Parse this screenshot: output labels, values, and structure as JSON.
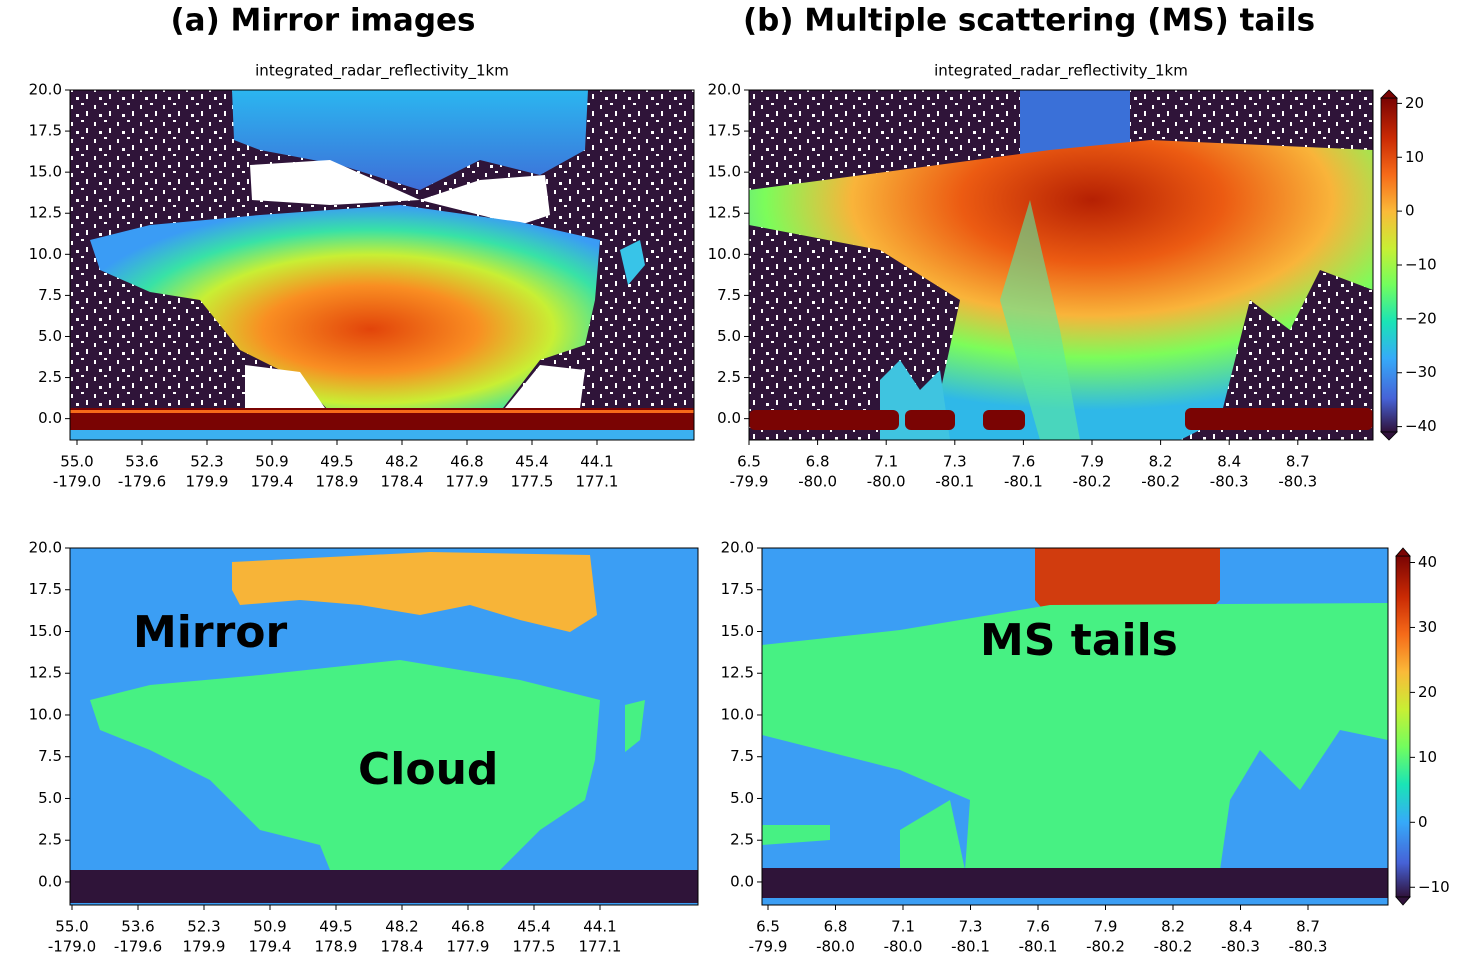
{
  "headings": [
    "(a) Mirror images",
    "(b) Multiple scattering (MS) tails"
  ],
  "chart_data": [
    {
      "type": "heatmap",
      "title": "integrated_radar_reflectivity_1km",
      "ylim": [
        -1.3,
        20
      ],
      "yticks": [
        {
          "value": 0,
          "label": "0.0"
        },
        {
          "value": 2.5,
          "label": "2.5"
        },
        {
          "value": 5,
          "label": "5.0"
        },
        {
          "value": 7.5,
          "label": "7.5"
        },
        {
          "value": 10,
          "label": "10.0"
        },
        {
          "value": 12.5,
          "label": "12.5"
        },
        {
          "value": 15,
          "label": "15.0"
        },
        {
          "value": 17.5,
          "label": "17.5"
        },
        {
          "value": 20,
          "label": "20.0"
        }
      ],
      "x_labels": [
        [
          "55.0",
          "-179.0"
        ],
        [
          "53.6",
          "-179.6"
        ],
        [
          "52.3",
          "179.9"
        ],
        [
          "50.9",
          "179.4"
        ],
        [
          "49.5",
          "178.9"
        ],
        [
          "48.2",
          "178.4"
        ],
        [
          "46.8",
          "177.9"
        ],
        [
          "45.4",
          "177.5"
        ],
        [
          "44.1",
          "177.1"
        ]
      ]
    },
    {
      "type": "heatmap",
      "title": "integrated_radar_reflectivity_1km",
      "ylim": [
        -1.3,
        20
      ],
      "yticks": [
        {
          "value": 0,
          "label": "0.0"
        },
        {
          "value": 2.5,
          "label": "2.5"
        },
        {
          "value": 5,
          "label": "5.0"
        },
        {
          "value": 7.5,
          "label": "7.5"
        },
        {
          "value": 10,
          "label": "10.0"
        },
        {
          "value": 12.5,
          "label": "12.5"
        },
        {
          "value": 15,
          "label": "15.0"
        },
        {
          "value": 17.5,
          "label": "17.5"
        },
        {
          "value": 20,
          "label": "20.0"
        }
      ],
      "x_labels": [
        [
          "6.5",
          "-79.9"
        ],
        [
          "6.8",
          "-80.0"
        ],
        [
          "7.1",
          "-80.0"
        ],
        [
          "7.3",
          "-80.1"
        ],
        [
          "7.6",
          "-80.1"
        ],
        [
          "7.9",
          "-80.2"
        ],
        [
          "8.2",
          "-80.2"
        ],
        [
          "8.4",
          "-80.3"
        ],
        [
          "8.7",
          "-80.3"
        ]
      ],
      "clim": [
        -41,
        21
      ],
      "cticks": [
        {
          "value": -40,
          "label": "−40"
        },
        {
          "value": -30,
          "label": "−30"
        },
        {
          "value": -20,
          "label": "−20"
        },
        {
          "value": -10,
          "label": "−10"
        },
        0,
        10,
        20
      ]
    },
    {
      "type": "heatmap",
      "ylim": [
        -1.38,
        20
      ],
      "yticks": [
        {
          "value": 0,
          "label": "0.0"
        },
        {
          "value": 2.5,
          "label": "2.5"
        },
        {
          "value": 5,
          "label": "5.0"
        },
        {
          "value": 7.5,
          "label": "7.5"
        },
        {
          "value": 10,
          "label": "10.0"
        },
        {
          "value": 12.5,
          "label": "12.5"
        },
        {
          "value": 15,
          "label": "15.0"
        },
        {
          "value": 17.5,
          "label": "17.5"
        },
        {
          "value": 20,
          "label": "20.0"
        }
      ],
      "x_labels": [
        [
          "55.0",
          "-179.0"
        ],
        [
          "53.6",
          "-179.6"
        ],
        [
          "52.3",
          "179.9"
        ],
        [
          "50.9",
          "179.4"
        ],
        [
          "49.5",
          "178.9"
        ],
        [
          "48.2",
          "178.4"
        ],
        [
          "46.8",
          "177.9"
        ],
        [
          "45.4",
          "177.5"
        ],
        [
          "44.1",
          "177.1"
        ]
      ],
      "annotations": [
        {
          "text": "Mirror",
          "color": "#f7b32f"
        },
        {
          "text": "Cloud",
          "color": "#2b5a1a"
        }
      ]
    },
    {
      "type": "heatmap",
      "ylim": [
        -1.38,
        20
      ],
      "yticks": [
        {
          "value": 0,
          "label": "0.0"
        },
        {
          "value": 2.5,
          "label": "2.5"
        },
        {
          "value": 5,
          "label": "5.0"
        },
        {
          "value": 7.5,
          "label": "7.5"
        },
        {
          "value": 10,
          "label": "10.0"
        },
        {
          "value": 12.5,
          "label": "12.5"
        },
        {
          "value": 15,
          "label": "15.0"
        },
        {
          "value": 17.5,
          "label": "17.5"
        },
        {
          "value": 20,
          "label": "20.0"
        }
      ],
      "x_labels": [
        [
          "6.5",
          "-79.9"
        ],
        [
          "6.8",
          "-80.0"
        ],
        [
          "7.1",
          "-80.0"
        ],
        [
          "7.3",
          "-80.1"
        ],
        [
          "7.6",
          "-80.1"
        ],
        [
          "7.9",
          "-80.2"
        ],
        [
          "8.2",
          "-80.2"
        ],
        [
          "8.4",
          "-80.3"
        ],
        [
          "8.7",
          "-80.3"
        ]
      ],
      "clim": [
        -11.5,
        41
      ],
      "cticks": [
        {
          "value": -10,
          "label": "−10"
        },
        0,
        10,
        20,
        30,
        40
      ],
      "annotations": [
        {
          "text": "MS tails",
          "color": "#e8140f"
        }
      ]
    }
  ]
}
